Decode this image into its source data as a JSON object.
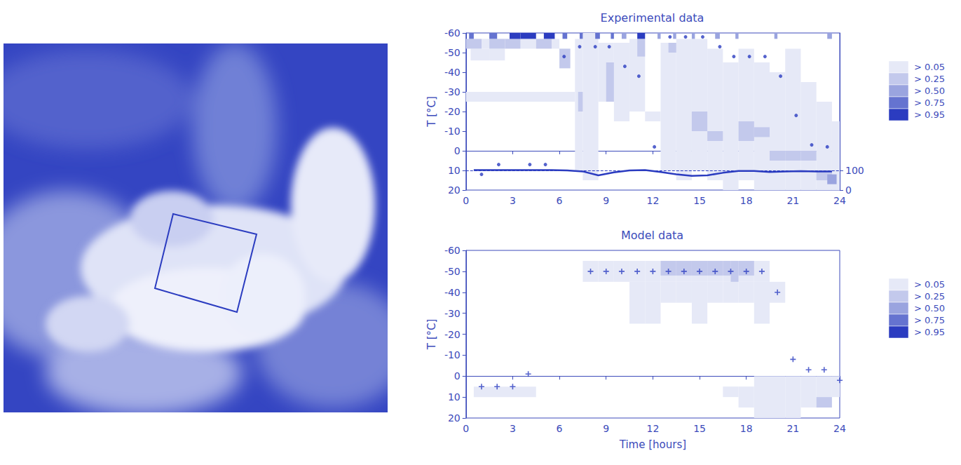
{
  "chart_data": [
    {
      "type": "heatmap",
      "title": "Experimental data",
      "ylabel": "T [°C]",
      "xlim": [
        0,
        24
      ],
      "xticks": [
        0,
        3,
        6,
        9,
        12,
        15,
        18,
        21,
        24
      ],
      "ylim": [
        20,
        -60
      ],
      "yticks": [
        -60,
        -50,
        -40,
        -30,
        -20,
        -10,
        0,
        10,
        20
      ],
      "y2lim": [
        0,
        800
      ],
      "y2ticks": [
        0,
        100
      ],
      "grid": false,
      "color_scale": {
        "levels": [
          0.05,
          0.25,
          0.5,
          0.75,
          0.95
        ],
        "labels": [
          "> 0.05",
          "> 0.25",
          "> 0.50",
          "> 0.75",
          "> 0.95"
        ],
        "colors": [
          "#e6e9f7",
          "#c3c9ec",
          "#9aa4df",
          "#6573d0",
          "#2b3cc0"
        ]
      },
      "cells": [
        [
          0,
          7,
          -30,
          -25,
          0.1
        ],
        [
          0.3,
          1.5,
          -52,
          -46,
          0.1
        ],
        [
          1.5,
          2.5,
          -52,
          -46,
          0.1
        ],
        [
          1,
          1.5,
          -57,
          -52,
          0.1
        ],
        [
          3.5,
          4.5,
          -57,
          -52,
          0.1
        ],
        [
          5.5,
          6,
          -57,
          -52,
          0.1
        ],
        [
          7,
          7.5,
          -57,
          10,
          0.1
        ],
        [
          7.5,
          8.5,
          -60,
          15,
          0.1
        ],
        [
          8.5,
          9.5,
          -55,
          -25,
          0.1
        ],
        [
          9.5,
          10.5,
          -55,
          -15,
          0.1
        ],
        [
          10.5,
          11.5,
          -57,
          -20,
          0.1
        ],
        [
          11.5,
          12.5,
          -20,
          -15,
          0.1
        ],
        [
          12.5,
          13.5,
          -55,
          10,
          0.1
        ],
        [
          13.5,
          14.5,
          -57,
          15,
          0.1
        ],
        [
          14.5,
          15.5,
          -57,
          10,
          0.1
        ],
        [
          15.5,
          16.5,
          -52,
          15,
          0.1
        ],
        [
          16.5,
          17.5,
          -45,
          20,
          0.1
        ],
        [
          17.5,
          18.5,
          -52,
          15,
          0.1
        ],
        [
          18.5,
          19.5,
          -45,
          20,
          0.1
        ],
        [
          19.5,
          20.5,
          -40,
          20,
          0.1
        ],
        [
          20.5,
          21.5,
          -52,
          20,
          0.1
        ],
        [
          21.5,
          22.5,
          -35,
          20,
          0.1
        ],
        [
          22.5,
          23.5,
          -25,
          20,
          0.1
        ],
        [
          23.5,
          24,
          -15,
          20,
          0.1
        ],
        [
          0,
          1,
          -57,
          -52,
          0.3
        ],
        [
          1.5,
          2.5,
          -57,
          -52,
          0.3
        ],
        [
          2.5,
          3.5,
          -57,
          -52,
          0.3
        ],
        [
          4.5,
          5.5,
          -57,
          -52,
          0.3
        ],
        [
          6,
          6.7,
          -52,
          -42,
          0.3
        ],
        [
          7.2,
          7.5,
          -30,
          -20,
          0.3
        ],
        [
          9,
          9.5,
          -45,
          -25,
          0.3
        ],
        [
          11,
          11.5,
          -57,
          -48,
          0.3
        ],
        [
          13,
          13.5,
          -55,
          -50,
          0.3
        ],
        [
          14.5,
          15.5,
          -20,
          -10,
          0.3
        ],
        [
          15.5,
          16.5,
          -10,
          -5,
          0.3
        ],
        [
          17.5,
          18.5,
          -15,
          -5,
          0.3
        ],
        [
          18.5,
          19.5,
          -12,
          -7,
          0.3
        ],
        [
          19.5,
          20.5,
          0,
          5,
          0.3
        ],
        [
          20.5,
          21.5,
          0,
          5,
          0.3
        ],
        [
          21.5,
          22.5,
          0,
          5,
          0.3
        ],
        [
          22.5,
          23.5,
          10,
          15,
          0.3
        ],
        [
          23.2,
          23.8,
          12,
          17,
          0.6
        ],
        [
          0.2,
          0.5,
          -60,
          -57,
          0.8
        ],
        [
          1.5,
          2,
          -60,
          -57,
          0.8
        ],
        [
          2.8,
          3.5,
          -60,
          -57,
          0.96
        ],
        [
          3.5,
          4.5,
          -60,
          -57,
          0.96
        ],
        [
          5,
          5.7,
          -60,
          -57,
          0.96
        ],
        [
          6.2,
          6.5,
          -60,
          -57,
          0.8
        ],
        [
          7.3,
          7.5,
          -60,
          -57,
          0.8
        ],
        [
          8.3,
          8.6,
          -60,
          -57,
          0.8
        ],
        [
          9.3,
          9.5,
          -60,
          -57,
          0.8
        ],
        [
          10,
          10.3,
          -60,
          -57,
          0.6
        ],
        [
          11,
          11.5,
          -60,
          -57,
          0.96
        ],
        [
          12.3,
          12.5,
          -60,
          -57,
          0.6
        ],
        [
          13.3,
          13.5,
          -60,
          -57,
          0.6
        ],
        [
          14.5,
          14.7,
          -60,
          -57,
          0.6
        ],
        [
          16,
          16.3,
          -60,
          -57,
          0.6
        ],
        [
          17.3,
          17.5,
          -60,
          -57,
          0.6
        ],
        [
          19.8,
          20,
          -60,
          -57,
          0.6
        ],
        [
          23.2,
          23.5,
          -60,
          -57,
          0.6
        ]
      ],
      "series": [
        {
          "type": "scatter",
          "marker": "circle",
          "color": "#2b3cc0",
          "x": [
            1,
            2.1,
            4.1,
            5.1,
            6.3,
            7.3,
            8.3,
            9.2,
            10.2,
            11.1,
            12.1,
            13.1,
            14.1,
            15.2,
            16.3,
            17.2,
            18.2,
            19.2,
            20.2,
            21.2,
            22.2,
            23.2
          ],
          "values": [
            12,
            7,
            7,
            7,
            -48,
            -53,
            -53,
            -53,
            -43,
            -38,
            -2,
            -58,
            -58,
            -58,
            -53,
            -48,
            -48,
            -48,
            -38,
            -18,
            -3,
            -2
          ]
        },
        {
          "type": "line",
          "axis": "y2",
          "color": "#2b3cc0",
          "line_style": "solid",
          "reference_value": 100,
          "x": [
            0.5,
            1.5,
            2.5,
            3.5,
            4.5,
            5.5,
            6.5,
            7.5,
            8.5,
            9.5,
            10.5,
            11.5,
            12.5,
            13.5,
            14.5,
            15.5,
            16.5,
            17.5,
            18.5,
            19.5,
            20.5,
            21.5,
            22.5,
            23.5
          ],
          "values": [
            102,
            102,
            102,
            102,
            102,
            102,
            100,
            95,
            75,
            90,
            100,
            102,
            92,
            80,
            72,
            75,
            88,
            97,
            97,
            92,
            95,
            96,
            95,
            95
          ]
        }
      ]
    },
    {
      "type": "heatmap",
      "title": "Model data",
      "xlabel": "Time [hours]",
      "ylabel": "T [°C]",
      "xlim": [
        0,
        24
      ],
      "xticks": [
        0,
        3,
        6,
        9,
        12,
        15,
        18,
        21,
        24
      ],
      "ylim": [
        20,
        -60
      ],
      "yticks": [
        -60,
        -50,
        -40,
        -30,
        -20,
        -10,
        0,
        10,
        20
      ],
      "grid": false,
      "color_scale": {
        "levels": [
          0.05,
          0.25,
          0.5,
          0.75,
          0.95
        ],
        "labels": [
          "> 0.05",
          "> 0.25",
          "> 0.50",
          "> 0.75",
          "> 0.95"
        ],
        "colors": [
          "#e6e9f7",
          "#c3c9ec",
          "#9aa4df",
          "#6573d0",
          "#2b3cc0"
        ]
      },
      "cells": [
        [
          0.5,
          4.5,
          5,
          10,
          0.1
        ],
        [
          7.5,
          8.5,
          -55,
          -45,
          0.1
        ],
        [
          8.5,
          9.5,
          -55,
          -45,
          0.1
        ],
        [
          9.5,
          10.5,
          -55,
          -45,
          0.1
        ],
        [
          10.5,
          11.5,
          -55,
          -45,
          0.1
        ],
        [
          11.5,
          12.5,
          -55,
          -45,
          0.1
        ],
        [
          12.5,
          13.5,
          -55,
          -45,
          0.1
        ],
        [
          13.5,
          14.5,
          -55,
          -45,
          0.1
        ],
        [
          14.5,
          15.5,
          -55,
          -45,
          0.1
        ],
        [
          15.5,
          16.5,
          -55,
          -45,
          0.1
        ],
        [
          16.5,
          17.5,
          -55,
          -45,
          0.1
        ],
        [
          17.5,
          18.5,
          -55,
          -45,
          0.1
        ],
        [
          18.5,
          19.5,
          -55,
          -45,
          0.1
        ],
        [
          10.5,
          11.5,
          -45,
          -25,
          0.1
        ],
        [
          11.5,
          12.5,
          -45,
          -25,
          0.1
        ],
        [
          12.5,
          13.5,
          -45,
          -35,
          0.1
        ],
        [
          13.5,
          14.5,
          -45,
          -35,
          0.1
        ],
        [
          14.5,
          15.5,
          -45,
          -25,
          0.1
        ],
        [
          15.5,
          16.5,
          -45,
          -35,
          0.1
        ],
        [
          16.5,
          17.5,
          -45,
          -35,
          0.1
        ],
        [
          17.5,
          18.5,
          -45,
          -35,
          0.1
        ],
        [
          18.5,
          19.5,
          -45,
          -25,
          0.1
        ],
        [
          19.5,
          20.5,
          -45,
          -35,
          0.1
        ],
        [
          12.5,
          13.5,
          -55,
          -48,
          0.3
        ],
        [
          13.5,
          14.5,
          -55,
          -48,
          0.3
        ],
        [
          14.5,
          15.5,
          -55,
          -48,
          0.3
        ],
        [
          15.5,
          16.5,
          -55,
          -48,
          0.3
        ],
        [
          16.5,
          17,
          -55,
          -48,
          0.3
        ],
        [
          17,
          17.5,
          -55,
          -45,
          0.5
        ],
        [
          17.5,
          18.5,
          -55,
          -48,
          0.3
        ],
        [
          16.5,
          17.5,
          5,
          10,
          0.1
        ],
        [
          17.5,
          18.5,
          5,
          15,
          0.1
        ],
        [
          18.5,
          19.5,
          0,
          20,
          0.1
        ],
        [
          19.5,
          20.5,
          0,
          20,
          0.1
        ],
        [
          20.5,
          21.5,
          0,
          20,
          0.1
        ],
        [
          21.5,
          22.5,
          0,
          15,
          0.1
        ],
        [
          22.5,
          23.5,
          0,
          10,
          0.1
        ],
        [
          22.5,
          23.5,
          10,
          15,
          0.3
        ],
        [
          23.5,
          24,
          0,
          10,
          0.1
        ]
      ],
      "series": [
        {
          "type": "scatter",
          "marker": "plus",
          "color": "#2b3cc0",
          "x": [
            1,
            2,
            3,
            4,
            8,
            9,
            10,
            11,
            12,
            13,
            14,
            15,
            16,
            17,
            18,
            19,
            20,
            21,
            22,
            23,
            24
          ],
          "values": [
            5,
            5,
            5,
            -1,
            -50,
            -50,
            -50,
            -50,
            -50,
            -50,
            -50,
            -50,
            -50,
            -50,
            -50,
            -50,
            -40,
            -8,
            -3,
            -3,
            2
          ]
        }
      ]
    }
  ]
}
